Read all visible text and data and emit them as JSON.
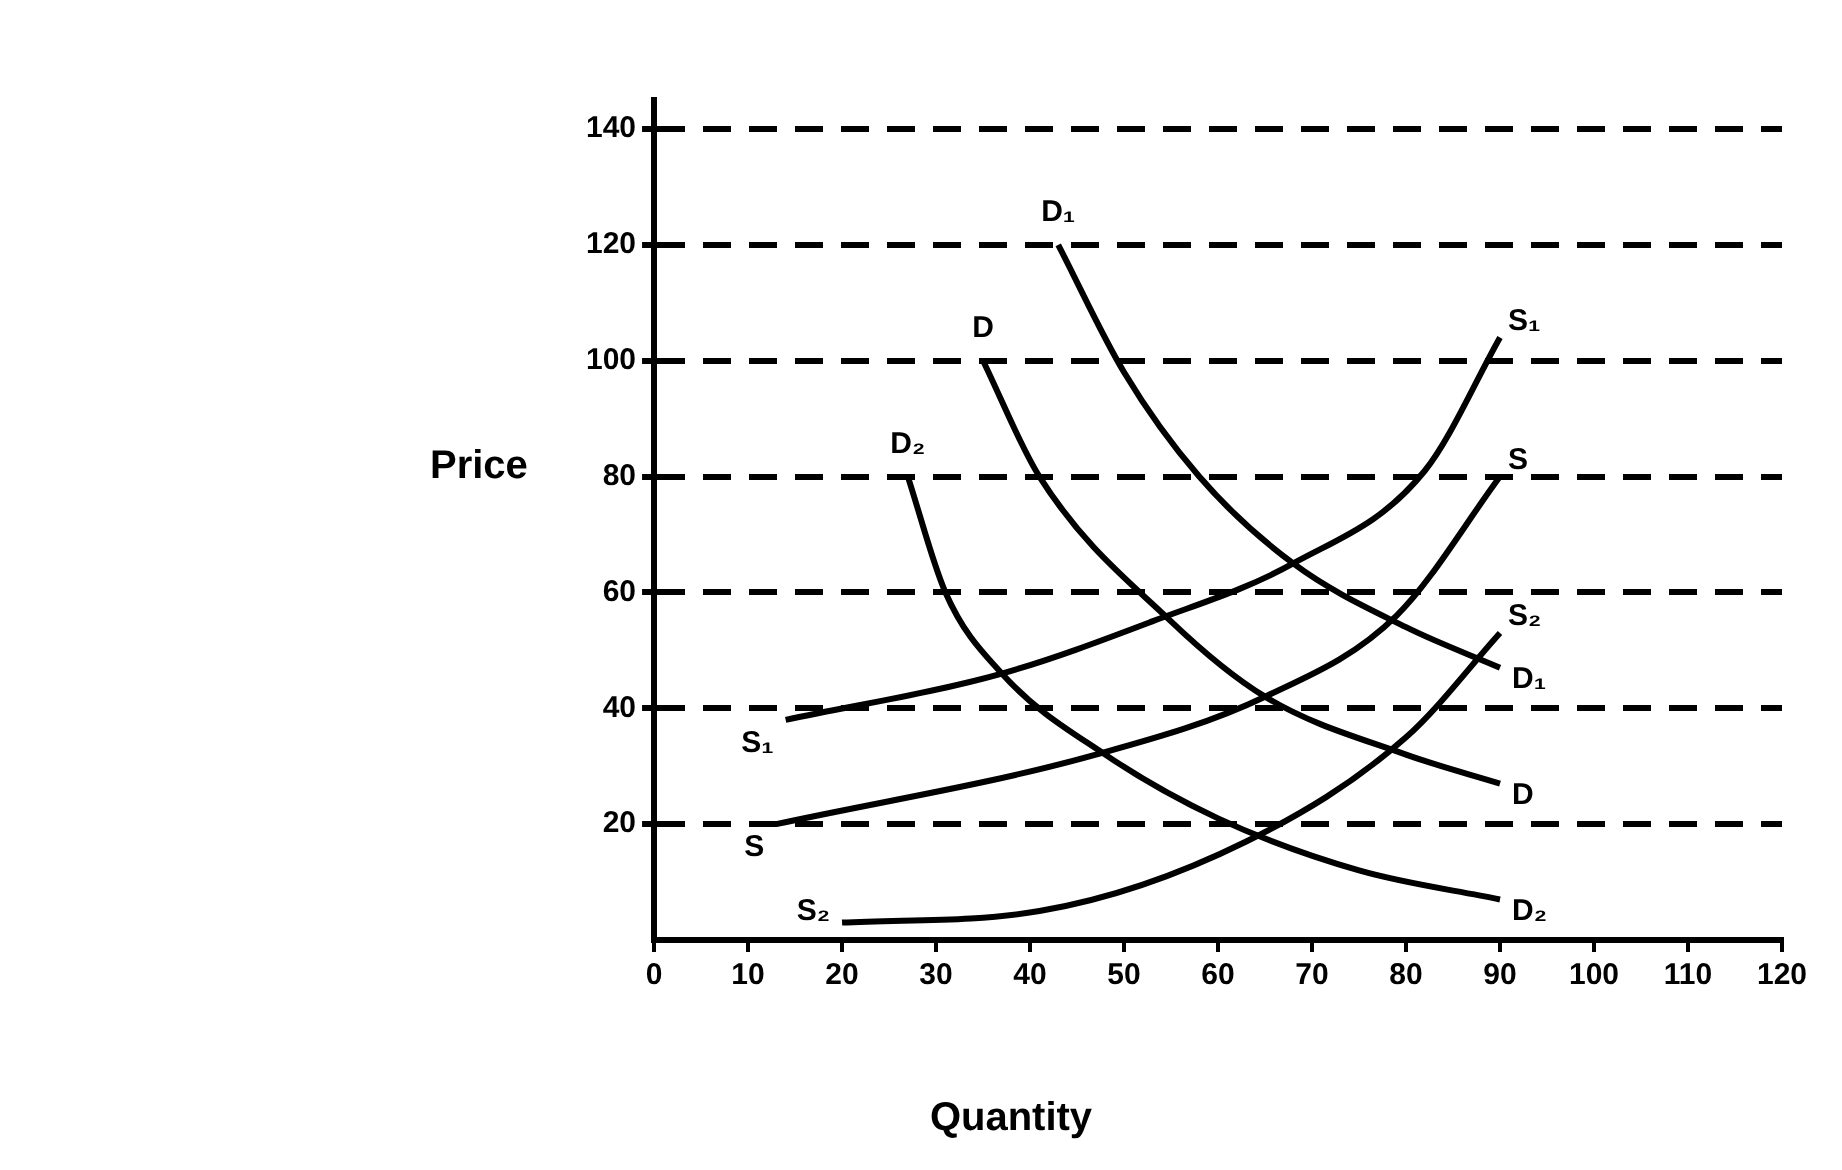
{
  "chart_data": {
    "type": "line",
    "xlabel": "Quantity",
    "ylabel": "Price",
    "xlim": [
      0,
      120
    ],
    "ylim": [
      0,
      145
    ],
    "xticks": [
      0,
      10,
      20,
      30,
      40,
      50,
      60,
      70,
      80,
      90,
      100,
      110,
      120
    ],
    "yticks": [
      20,
      40,
      60,
      80,
      100,
      120,
      140
    ],
    "grid": "y",
    "legend": false,
    "marker": "none",
    "line_style": "solid",
    "series": [
      {
        "name": "D₁",
        "color": "#000000",
        "x": [
          43,
          50,
          58,
          68,
          80,
          90
        ],
        "values": [
          120,
          98,
          80,
          65,
          54,
          47
        ]
      },
      {
        "name": "D",
        "color": "#000000",
        "x": [
          35,
          41,
          55,
          65,
          80,
          90
        ],
        "values": [
          100,
          80,
          55,
          42,
          32,
          27
        ]
      },
      {
        "name": "D₂",
        "color": "#000000",
        "x": [
          27,
          31,
          37,
          48,
          60,
          75,
          90
        ],
        "values": [
          80,
          60,
          46,
          32,
          21,
          12,
          7
        ]
      },
      {
        "name": "S₁",
        "color": "#000000",
        "x": [
          14,
          37,
          53,
          68,
          82,
          90
        ],
        "values": [
          38,
          46,
          55,
          65,
          81,
          104
        ]
      },
      {
        "name": "S",
        "color": "#000000",
        "x": [
          13,
          47,
          65,
          79,
          90
        ],
        "values": [
          20,
          32,
          42,
          56,
          80
        ]
      },
      {
        "name": "S₂",
        "color": "#000000",
        "x": [
          20,
          41,
          63,
          80,
          90
        ],
        "values": [
          3,
          5,
          17,
          35,
          53
        ]
      }
    ]
  }
}
